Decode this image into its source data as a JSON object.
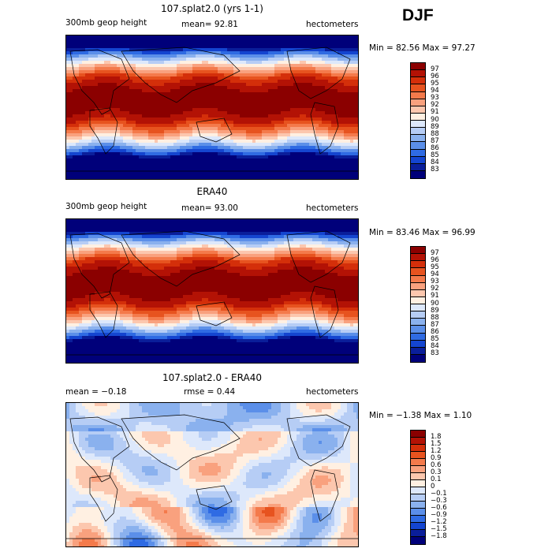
{
  "season": "DJF",
  "panels": [
    {
      "title": "107.splat2.0 (yrs 1-1)",
      "left_label": "300mb geop height",
      "middle_label": "mean=  92.81",
      "right_label": "hectometers",
      "minmax": "Min =  82.56 Max =  97.27",
      "colorbar": {
        "labels": [
          "97",
          "96",
          "95",
          "94",
          "93",
          "92",
          "91",
          "90",
          "89",
          "88",
          "87",
          "86",
          "85",
          "84",
          "83"
        ],
        "colors": [
          "#8b0000",
          "#b31205",
          "#d42f0a",
          "#e7531f",
          "#f47a4b",
          "#f9a17e",
          "#fcc7ae",
          "#fff0e2",
          "#dde8fb",
          "#b6cdf5",
          "#8ab1ee",
          "#5b8fe9",
          "#2f6be3",
          "#1445d0",
          "#0a1e9a",
          "#00007a"
        ]
      },
      "field": "full"
    },
    {
      "title": "ERA40",
      "left_label": "300mb geop height",
      "middle_label": "mean=  93.00",
      "right_label": "hectometers",
      "minmax": "Min =  83.46 Max =  96.99",
      "colorbar": {
        "labels": [
          "97",
          "96",
          "95",
          "94",
          "93",
          "92",
          "91",
          "90",
          "89",
          "88",
          "87",
          "86",
          "85",
          "84",
          "83"
        ],
        "colors": [
          "#8b0000",
          "#b31205",
          "#d42f0a",
          "#e7531f",
          "#f47a4b",
          "#f9a17e",
          "#fcc7ae",
          "#fff0e2",
          "#dde8fb",
          "#b6cdf5",
          "#8ab1ee",
          "#5b8fe9",
          "#2f6be3",
          "#1445d0",
          "#0a1e9a",
          "#00007a"
        ]
      },
      "field": "full"
    },
    {
      "title": "107.splat2.0 - ERA40",
      "left_label": "mean =  −0.18",
      "middle_label": "rmse =   0.44",
      "right_label": "hectometers",
      "minmax": "Min =  −1.38 Max =   1.10",
      "colorbar": {
        "labels": [
          "1.8",
          "1.5",
          "1.2",
          "0.9",
          "0.6",
          "0.3",
          "0.1",
          "0",
          "−0.1",
          "−0.3",
          "−0.6",
          "−0.9",
          "−1.2",
          "−1.5",
          "−1.8"
        ],
        "colors": [
          "#8b0000",
          "#b31205",
          "#d42f0a",
          "#e7531f",
          "#f47a4b",
          "#f9a17e",
          "#fcc7ae",
          "#fff0e2",
          "#dde8fb",
          "#b6cdf5",
          "#8ab1ee",
          "#5b8fe9",
          "#2f6be3",
          "#1445d0",
          "#0a1e9a",
          "#00007a"
        ]
      },
      "field": "diff"
    }
  ]
}
